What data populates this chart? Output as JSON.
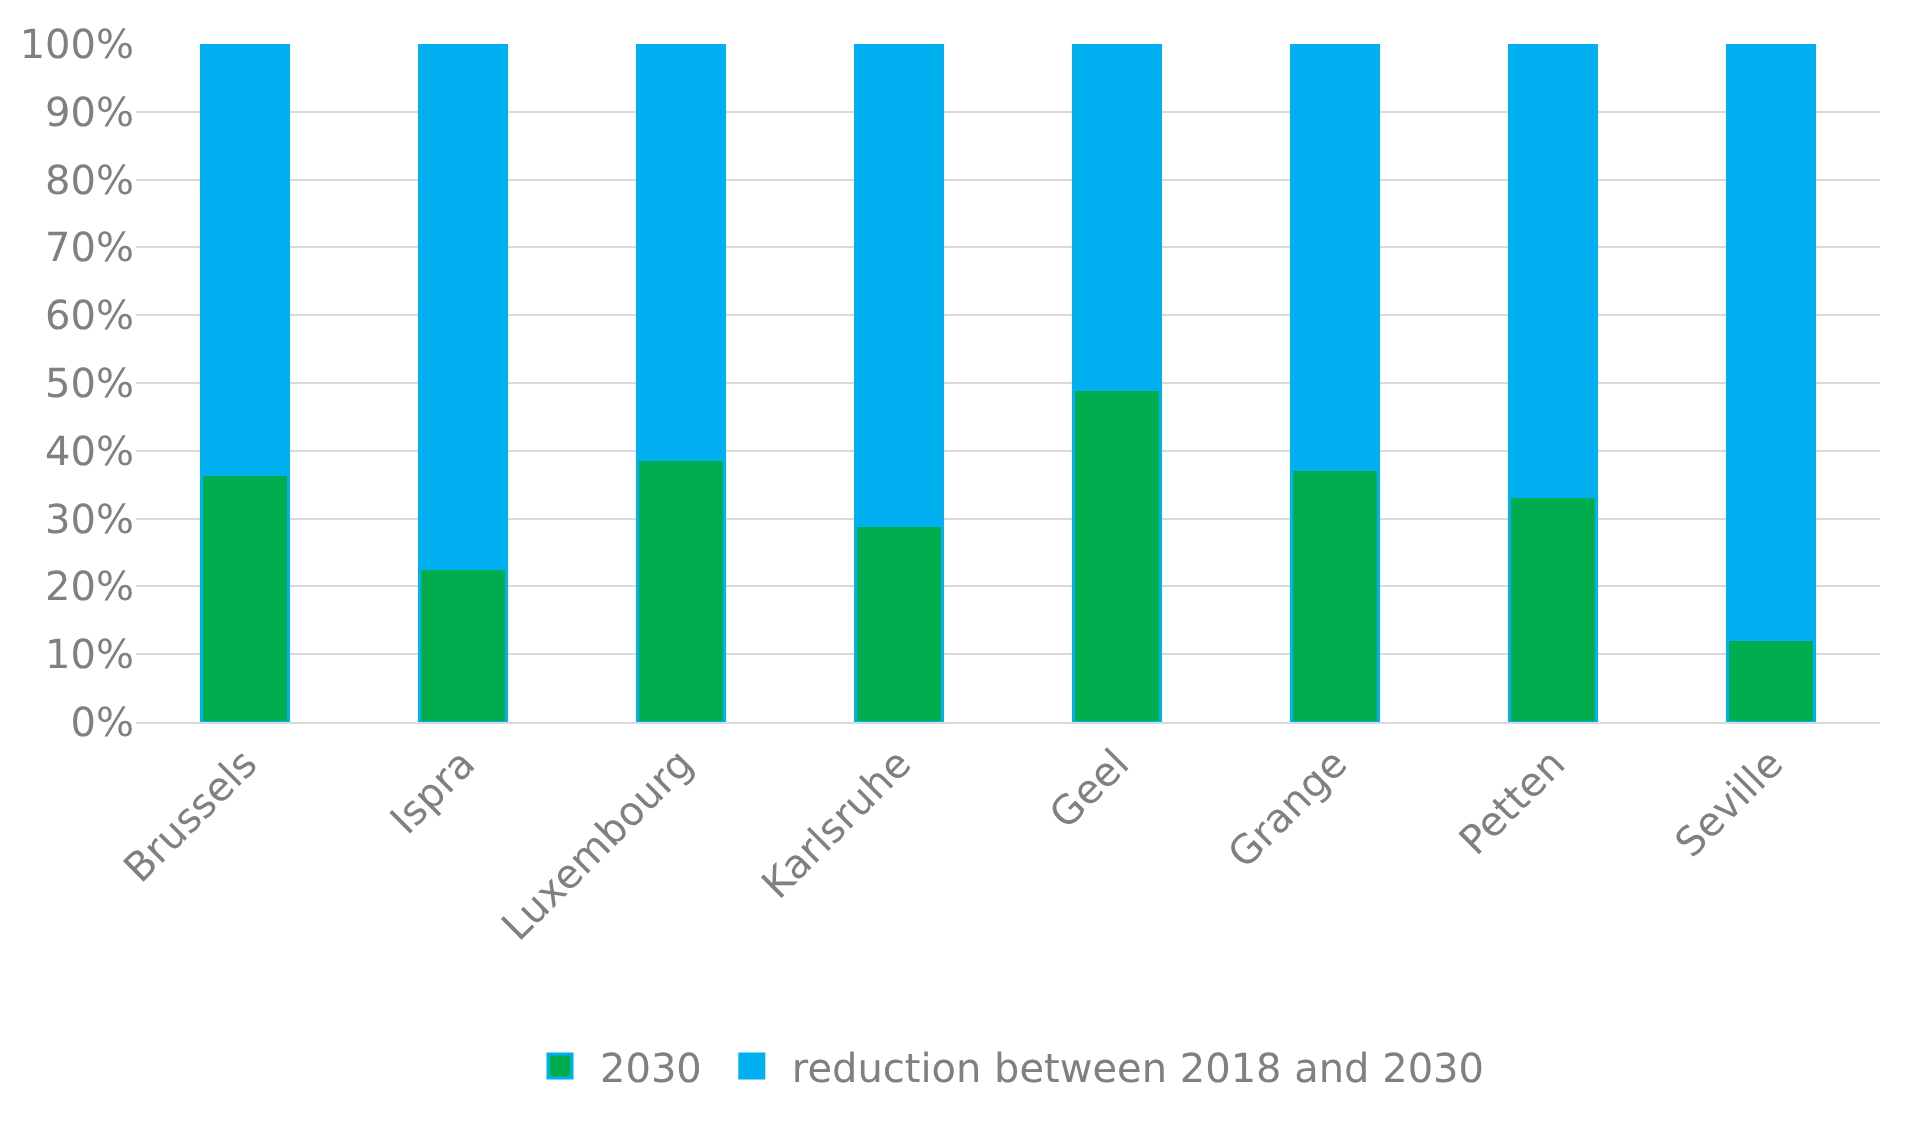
{
  "chart_data": {
    "type": "bar",
    "stacked": true,
    "categories": [
      "Brussels",
      "Ispra",
      "Luxembourg",
      "Karlsruhe",
      "Geel",
      "Grange",
      "Petten",
      "Seville"
    ],
    "series": [
      {
        "name": "2030",
        "color": "#00ad4e",
        "values": [
          36.5,
          22.7,
          38.7,
          29,
          49,
          37.2,
          33.3,
          12.2
        ]
      },
      {
        "name": "reduction between 2018 and 2030",
        "color": "#00b0f0",
        "values": [
          63.5,
          77.3,
          61.3,
          71,
          51,
          62.8,
          66.7,
          87.8
        ]
      }
    ],
    "ylim": [
      0,
      100
    ],
    "yticks": [
      {
        "value": 0,
        "label": "0%"
      },
      {
        "value": 10,
        "label": "10%"
      },
      {
        "value": 20,
        "label": "20%"
      },
      {
        "value": 30,
        "label": "30%"
      },
      {
        "value": 40,
        "label": "40%"
      },
      {
        "value": 50,
        "label": "50%"
      },
      {
        "value": 60,
        "label": "60%"
      },
      {
        "value": 70,
        "label": "70%"
      },
      {
        "value": 80,
        "label": "80%"
      },
      {
        "value": 90,
        "label": "90%"
      },
      {
        "value": 100,
        "label": "100%"
      }
    ],
    "grid": "y",
    "legend": "bottom"
  }
}
